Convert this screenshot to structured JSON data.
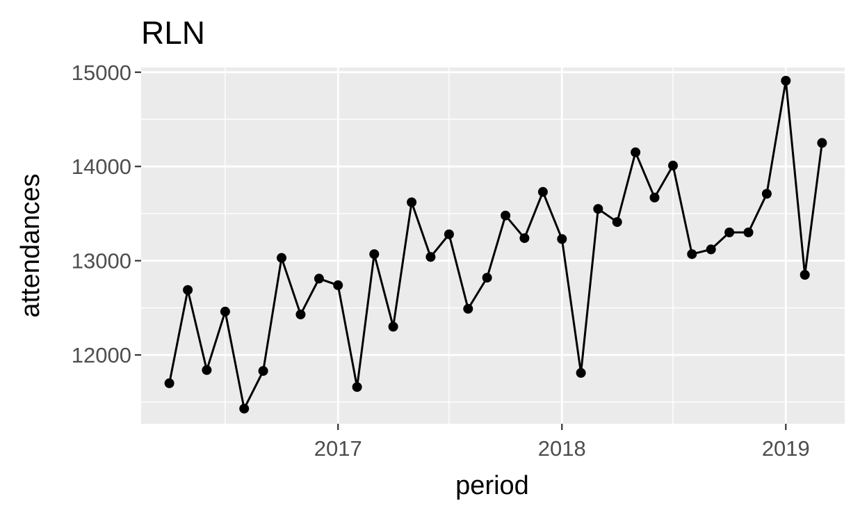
{
  "chart_data": {
    "type": "line",
    "title": "RLN",
    "xlabel": "period",
    "ylabel": "attendances",
    "x_axis": {
      "type": "date",
      "range": [
        "2016-02-15",
        "2019-04-07"
      ],
      "ticks": [
        {
          "value": "2017-01-01",
          "label": "2017"
        },
        {
          "value": "2018-01-01",
          "label": "2018"
        },
        {
          "value": "2019-01-01",
          "label": "2019"
        }
      ],
      "minor_ticks": [
        "2016-07-01",
        "2017-07-01",
        "2018-07-01"
      ]
    },
    "y_axis": {
      "range": [
        11270,
        15050
      ],
      "ticks": [
        12000,
        13000,
        14000,
        15000
      ],
      "minor_ticks": [
        11500,
        12500,
        13500,
        14500
      ]
    },
    "grid": true,
    "legend": "none",
    "colors": {
      "panel_background": "#ebebeb",
      "gridline": "#ffffff",
      "series": "#000000",
      "tick_label": "#4d4d4d",
      "tick_mark": "#333333"
    },
    "series": [
      {
        "x": [
          "2016-04-01",
          "2016-05-01",
          "2016-06-01",
          "2016-07-01",
          "2016-08-01",
          "2016-09-01",
          "2016-10-01",
          "2016-11-01",
          "2016-12-01",
          "2017-01-01",
          "2017-02-01",
          "2017-03-01",
          "2017-04-01",
          "2017-05-01",
          "2017-06-01",
          "2017-07-01",
          "2017-08-01",
          "2017-09-01",
          "2017-10-01",
          "2017-11-01",
          "2017-12-01",
          "2018-01-01",
          "2018-02-01",
          "2018-03-01",
          "2018-04-01",
          "2018-05-01",
          "2018-06-01",
          "2018-07-01",
          "2018-08-01",
          "2018-09-01",
          "2018-10-01",
          "2018-11-01",
          "2018-12-01",
          "2019-01-01",
          "2019-02-01",
          "2019-03-01"
        ],
        "values": [
          11700,
          12690,
          11840,
          12460,
          11430,
          11830,
          13030,
          12430,
          12810,
          12740,
          11660,
          13070,
          12300,
          13620,
          13040,
          13280,
          12490,
          12820,
          13480,
          13240,
          13730,
          13230,
          11810,
          13550,
          13410,
          14150,
          13670,
          14010,
          13070,
          13120,
          13300,
          13300,
          13710,
          14910,
          12850,
          14250
        ]
      }
    ]
  }
}
